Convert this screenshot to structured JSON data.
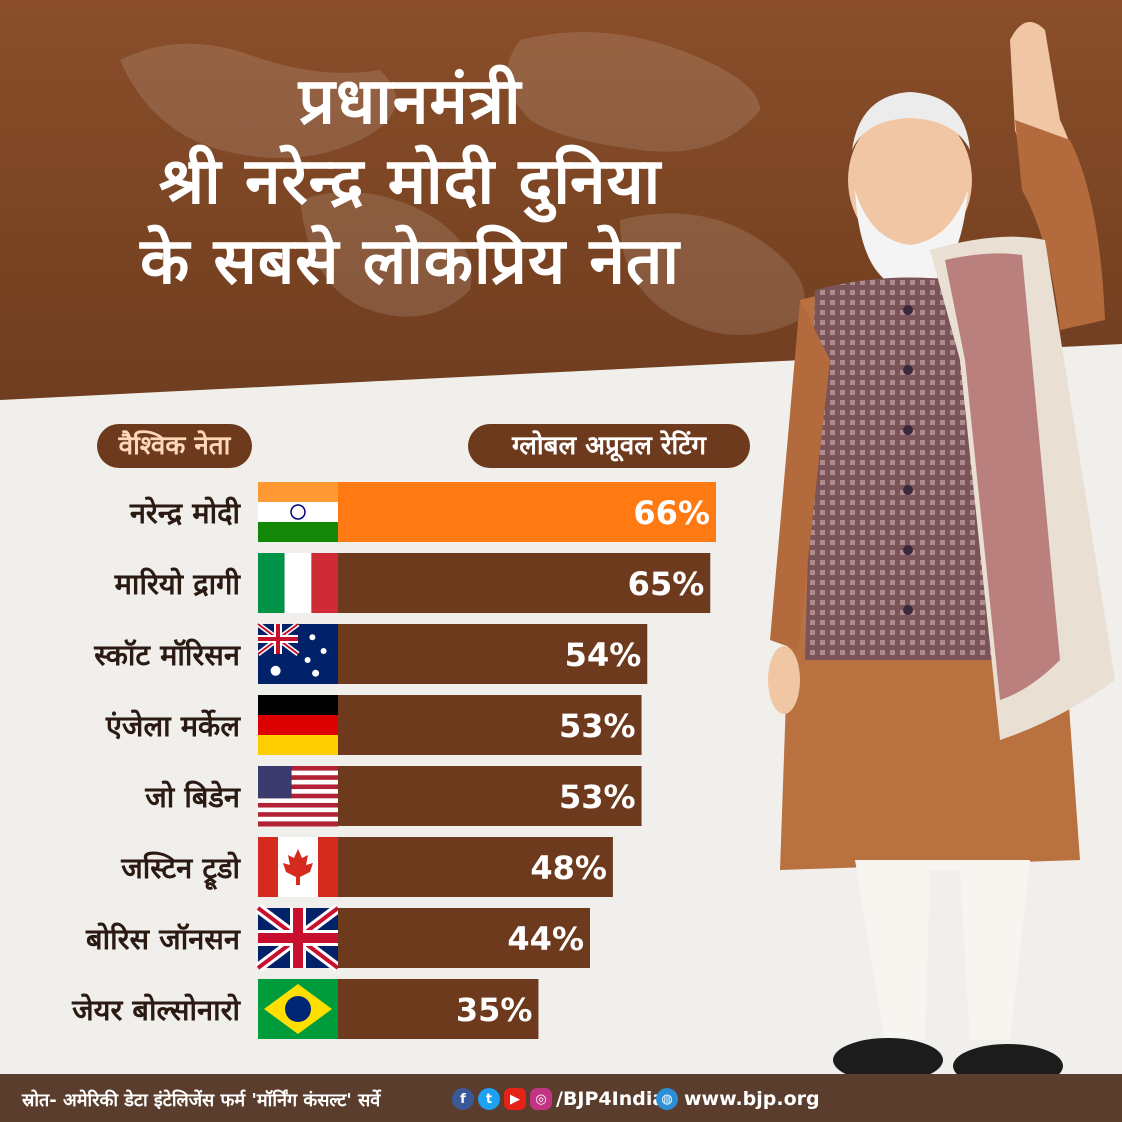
{
  "header": {
    "title_lines": [
      "प्रधानमंत्री",
      "श्री नरेन्द्र मोदी दुनिया",
      "के सबसे लोकप्रिय नेता"
    ]
  },
  "labels": {
    "leaders_header": "वैश्विक नेता",
    "rating_header": "ग्लोबल अप्रूवल रेटिंग"
  },
  "colors": {
    "bar_highlight": "#ff7a12",
    "bar_default": "#6e3a1e",
    "header_bg": "#7a4423",
    "background": "#f1efec"
  },
  "chart_data": {
    "type": "bar",
    "orientation": "horizontal",
    "categories": [
      "नरेन्द्र मोदी",
      "मारियो द्रागी",
      "स्कॉट मॉरिसन",
      "एंजेला मर्केल",
      "जो बिडेन",
      "जस्टिन ट्रूडो",
      "बोरिस जॉनसन",
      "जेयर बोल्सोनारो"
    ],
    "values": [
      66,
      65,
      54,
      53,
      53,
      48,
      44,
      35
    ],
    "value_labels": [
      "66%",
      "65%",
      "54%",
      "53%",
      "53%",
      "48%",
      "44%",
      "35%"
    ],
    "flags": [
      "india-flag",
      "italy-flag",
      "australia-flag",
      "germany-flag",
      "usa-flag",
      "canada-flag",
      "uk-flag",
      "brazil-flag"
    ],
    "highlight_index": 0,
    "grid": false,
    "legend": "none"
  },
  "footer": {
    "source": "स्रोत- अमेरिकी डेटा इंटेलिजेंस फर्म 'मॉर्निंग कंसल्ट' सर्वे",
    "social_icons": [
      "facebook-icon",
      "twitter-icon",
      "youtube-icon",
      "instagram-icon"
    ],
    "social_handle": "/BJP4India",
    "website": "www.bjp.org"
  }
}
